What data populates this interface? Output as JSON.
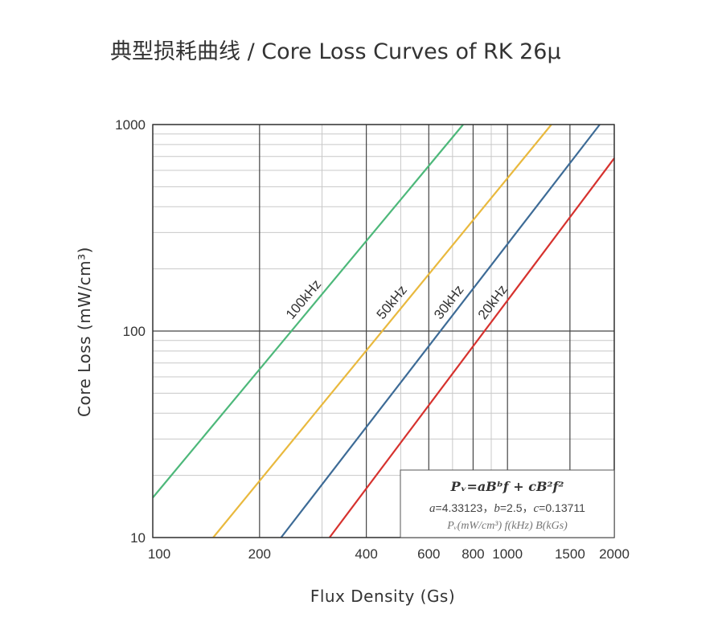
{
  "chart_data": {
    "type": "line",
    "title": "典型损耗曲线 / Core Loss Curves of RK 26μ",
    "xlabel": "Flux Density (Gs)",
    "ylabel": "Core Loss (mW/cm³)",
    "x_scale": "log",
    "y_scale": "log",
    "xlim": [
      100,
      2000
    ],
    "ylim": [
      10,
      1000
    ],
    "x_ticks": [
      100,
      200,
      400,
      600,
      800,
      1000,
      1500,
      2000
    ],
    "x_tick_labels": [
      "100",
      "200",
      "400",
      "600",
      "800",
      "1000",
      "1500",
      "2000"
    ],
    "y_ticks": [
      10,
      100,
      1000
    ],
    "y_tick_labels": [
      "10",
      "100",
      "1000"
    ],
    "grid": true,
    "series": [
      {
        "name": "100kHz",
        "color": "#4db87a",
        "frequency_khz": 100,
        "x": [
          100,
          750
        ],
        "y": [
          15.6,
          1000
        ]
      },
      {
        "name": "50kHz",
        "color": "#e9b93e",
        "frequency_khz": 50,
        "x": [
          148,
          1330
        ],
        "y": [
          10,
          1000
        ]
      },
      {
        "name": "30kHz",
        "color": "#3d6b96",
        "frequency_khz": 30,
        "x": [
          230,
          1820
        ],
        "y": [
          10,
          1000
        ]
      },
      {
        "name": "20kHz",
        "color": "#d6322e",
        "frequency_khz": 20,
        "x": [
          315,
          2000
        ],
        "y": [
          10,
          687
        ]
      }
    ],
    "formula": {
      "equation": "Pᵥ=aBᵇf + cB²f²",
      "coefficients": [
        {
          "name": "a",
          "value": "4.33123"
        },
        {
          "name": "b",
          "value": "2.5"
        },
        {
          "name": "c",
          "value": "0.13711"
        }
      ],
      "units": "Pᵥ(mW/cm³) f(kHz) B(kGs)"
    }
  }
}
